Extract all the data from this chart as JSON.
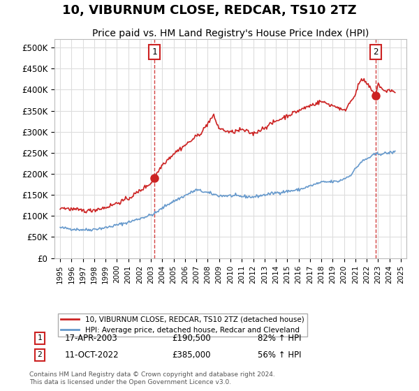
{
  "title": "10, VIBURNUM CLOSE, REDCAR, TS10 2TZ",
  "subtitle": "Price paid vs. HM Land Registry's House Price Index (HPI)",
  "title_fontsize": 13,
  "subtitle_fontsize": 10,
  "xlim": [
    1994.5,
    2025.5
  ],
  "ylim": [
    0,
    520000
  ],
  "yticks": [
    0,
    50000,
    100000,
    150000,
    200000,
    250000,
    300000,
    350000,
    400000,
    450000,
    500000
  ],
  "ytick_labels": [
    "£0",
    "£50K",
    "£100K",
    "£150K",
    "£200K",
    "£250K",
    "£300K",
    "£350K",
    "£400K",
    "£450K",
    "£500K"
  ],
  "xticks": [
    1995,
    1996,
    1997,
    1998,
    1999,
    2000,
    2001,
    2002,
    2003,
    2004,
    2005,
    2006,
    2007,
    2008,
    2009,
    2010,
    2011,
    2012,
    2013,
    2014,
    2015,
    2016,
    2017,
    2018,
    2019,
    2020,
    2021,
    2022,
    2023,
    2024,
    2025
  ],
  "hpi_color": "#6699cc",
  "price_color": "#cc2222",
  "sale1_x": 2003.29,
  "sale1_y": 190500,
  "sale2_x": 2022.78,
  "sale2_y": 385000,
  "vline1_x": 2003.29,
  "vline2_x": 2022.78,
  "legend_label_price": "10, VIBURNUM CLOSE, REDCAR, TS10 2TZ (detached house)",
  "legend_label_hpi": "HPI: Average price, detached house, Redcar and Cleveland",
  "sale1_date": "17-APR-2003",
  "sale1_price": "£190,500",
  "sale1_hpi": "82% ↑ HPI",
  "sale2_date": "11-OCT-2022",
  "sale2_price": "£385,000",
  "sale2_hpi": "56% ↑ HPI",
  "footer": "Contains HM Land Registry data © Crown copyright and database right 2024.\nThis data is licensed under the Open Government Licence v3.0.",
  "bg_color": "#ffffff",
  "grid_color": "#dddddd"
}
